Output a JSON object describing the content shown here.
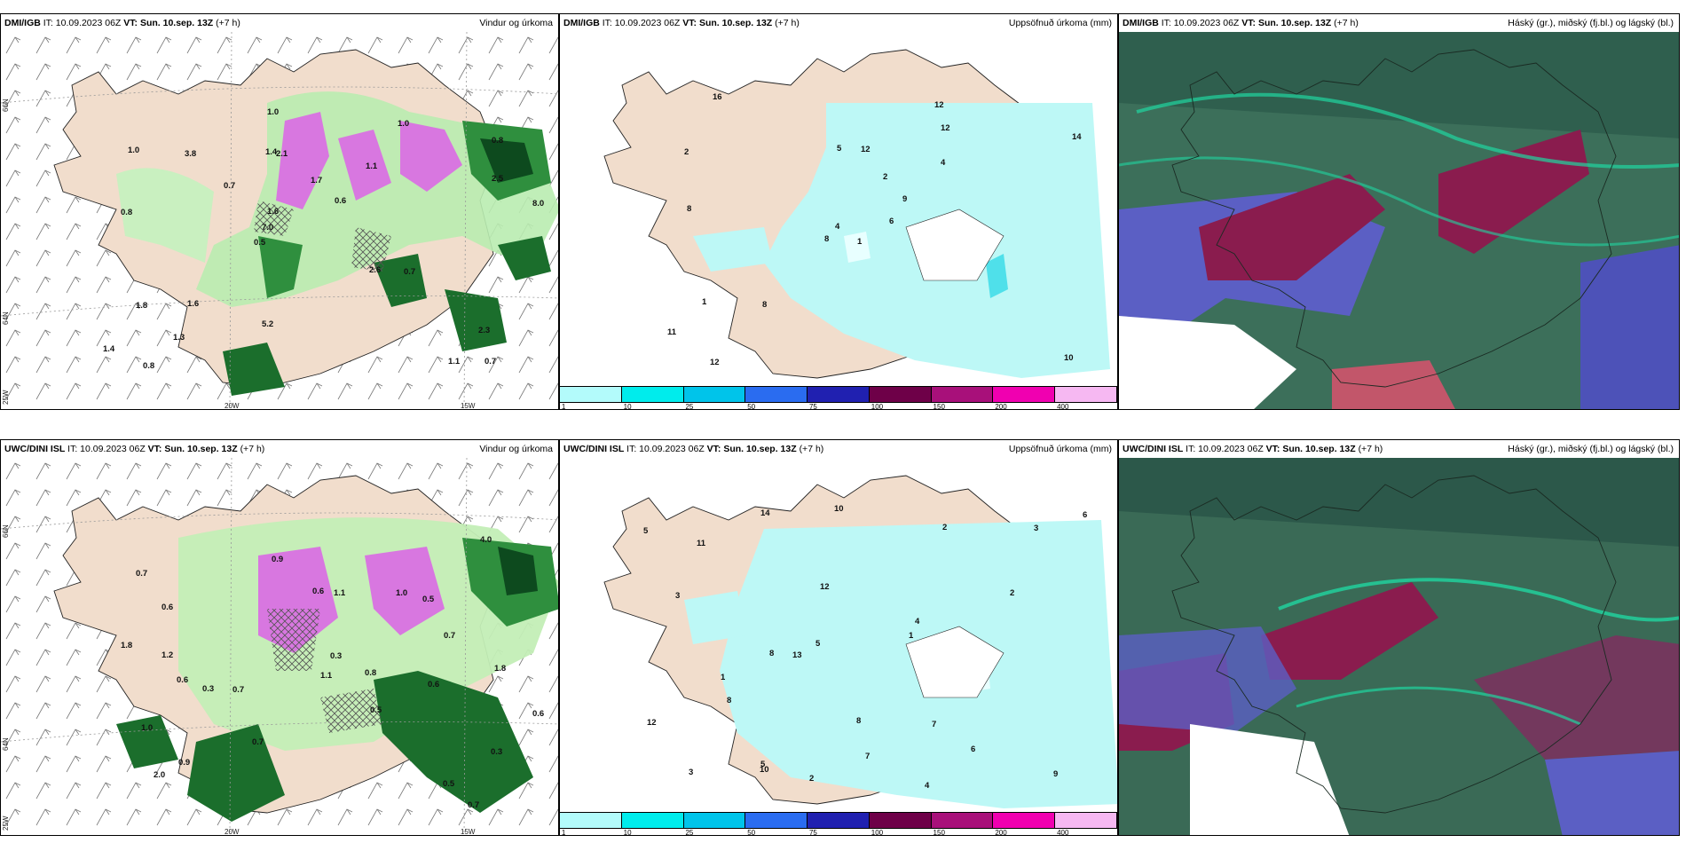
{
  "panels": [
    {
      "id": "p1",
      "model": "DMI/IGB",
      "it": "IT: 10.09.2023 06Z",
      "vt_label": "VT:",
      "vt": "Sun. 10.sep. 13Z",
      "lead": "(+7 h)",
      "product": "Vindur og úrkoma"
    },
    {
      "id": "p2",
      "model": "DMI/IGB",
      "it": "IT: 10.09.2023 06Z",
      "vt_label": "VT:",
      "vt": "Sun. 10.sep. 13Z",
      "lead": "(+7 h)",
      "product": "Uppsöfnuð úrkoma (mm)"
    },
    {
      "id": "p3",
      "model": "DMI/IGB",
      "it": "IT: 10.09.2023 06Z",
      "vt_label": "VT:",
      "vt": "Sun. 10.sep. 13Z",
      "lead": "(+7 h)",
      "product": "Háský (gr.), miðský (fj.bl.) og lágský (bl.)"
    },
    {
      "id": "p4",
      "model": "UWC/DINI ISL",
      "it": "IT: 10.09.2023 06Z",
      "vt_label": "VT:",
      "vt": "Sun. 10.sep. 13Z",
      "lead": "(+7 h)",
      "product": "Vindur og úrkoma"
    },
    {
      "id": "p5",
      "model": "UWC/DINI ISL",
      "it": "IT: 10.09.2023 06Z",
      "vt_label": "VT:",
      "vt": "Sun. 10.sep. 13Z",
      "lead": "(+7 h)",
      "product": "Uppsöfnuð úrkoma (mm)"
    },
    {
      "id": "p6",
      "model": "UWC/DINI ISL",
      "it": "IT: 10.09.2023 06Z",
      "vt_label": "VT:",
      "vt": "Sun. 10.sep. 13Z",
      "lead": "(+7 h)",
      "product": "Háský (gr.), miðský (fj.bl.) og lágský (bl.)"
    }
  ],
  "map_labels": {
    "lat_66": "66N",
    "lat_64": "64N",
    "lat_25w": "25W",
    "lon_20w": "20W",
    "lon_15w": "15W"
  },
  "legend": {
    "ticks": [
      "1",
      "10",
      "25",
      "50",
      "75",
      "100",
      "150",
      "200",
      "400"
    ],
    "colors": [
      "#b3fbfb",
      "#00ecec",
      "#00c4ea",
      "#2a6cf0",
      "#2020b0",
      "#6e0048",
      "#a8107a",
      "#f000b0",
      "#f6b8f2"
    ]
  },
  "precip_values_p1": [
    "0.7",
    "0.8",
    "0.8",
    "0.5",
    "1.1",
    "0.8",
    "1.4",
    "1.7",
    "1.8",
    "0.7",
    "1.4",
    "1.3",
    "2.1",
    "0.6",
    "0.7",
    "1.0",
    "1.0",
    "8.0",
    "2.6",
    "2.5",
    "7.0",
    "5.2",
    "1.6",
    "3.8",
    "1.0",
    "1.6",
    "1.1",
    "2.3"
  ],
  "precip_values_p4": [
    "0.7",
    "0.6",
    "0.5",
    "0.7",
    "0.3",
    "0.6",
    "0.9",
    "0.7",
    "0.5",
    "0.6",
    "1.0",
    "0.5",
    "0.7",
    "0.9",
    "0.8",
    "1.0",
    "0.6",
    "0.3",
    "1.8",
    "2.0",
    "4.0",
    "1.1",
    "0.7",
    "0.6",
    "1.8",
    "1.2",
    "0.3",
    "1.1"
  ],
  "accum_values_p2": [
    "1",
    "2",
    "4",
    "11",
    "9",
    "8",
    "12",
    "12",
    "12",
    "6",
    "16",
    "10",
    "8",
    "14",
    "8",
    "4",
    "12",
    "5",
    "2",
    "1"
  ],
  "accum_values_p5": [
    "2",
    "4",
    "5",
    "6",
    "14",
    "11",
    "8",
    "9",
    "10",
    "12",
    "3",
    "7",
    "5",
    "8",
    "2",
    "1",
    "3",
    "10",
    "13",
    "5",
    "7",
    "6",
    "4",
    "3",
    "2",
    "1",
    "12",
    "8"
  ]
}
